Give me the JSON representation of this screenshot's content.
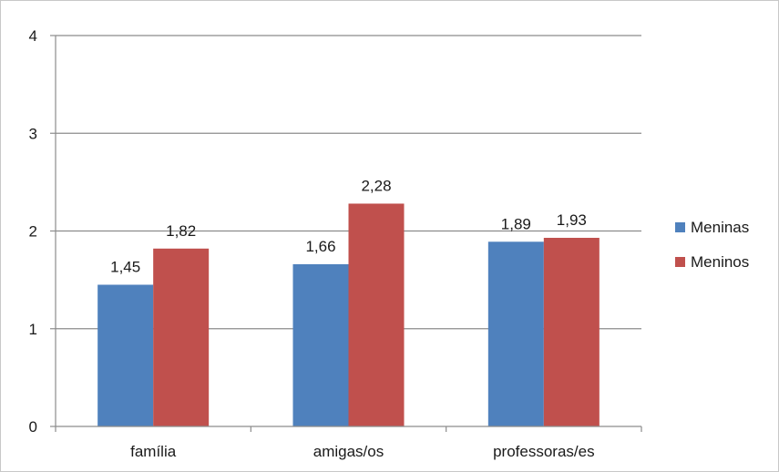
{
  "chart_data": {
    "type": "bar",
    "categories": [
      "família",
      "amigas/os",
      "professoras/es"
    ],
    "series": [
      {
        "name": "Meninas",
        "values": [
          1.45,
          1.66,
          1.89
        ],
        "labels": [
          "1,45",
          "1,66",
          "1,89"
        ],
        "color": "#4f81bd"
      },
      {
        "name": "Meninos",
        "values": [
          1.82,
          2.28,
          1.93
        ],
        "labels": [
          "1,82",
          "2,28",
          "1,93"
        ],
        "color": "#c0504d"
      }
    ],
    "title": "",
    "xlabel": "",
    "ylabel": "",
    "ylim": [
      0,
      4
    ],
    "yticks": [
      0,
      1,
      2,
      3,
      4
    ],
    "ytick_labels": [
      "0",
      "1",
      "2",
      "3",
      "4"
    ],
    "grid": true,
    "gridline_color": "#8c8c8c",
    "legend_position": "right"
  }
}
